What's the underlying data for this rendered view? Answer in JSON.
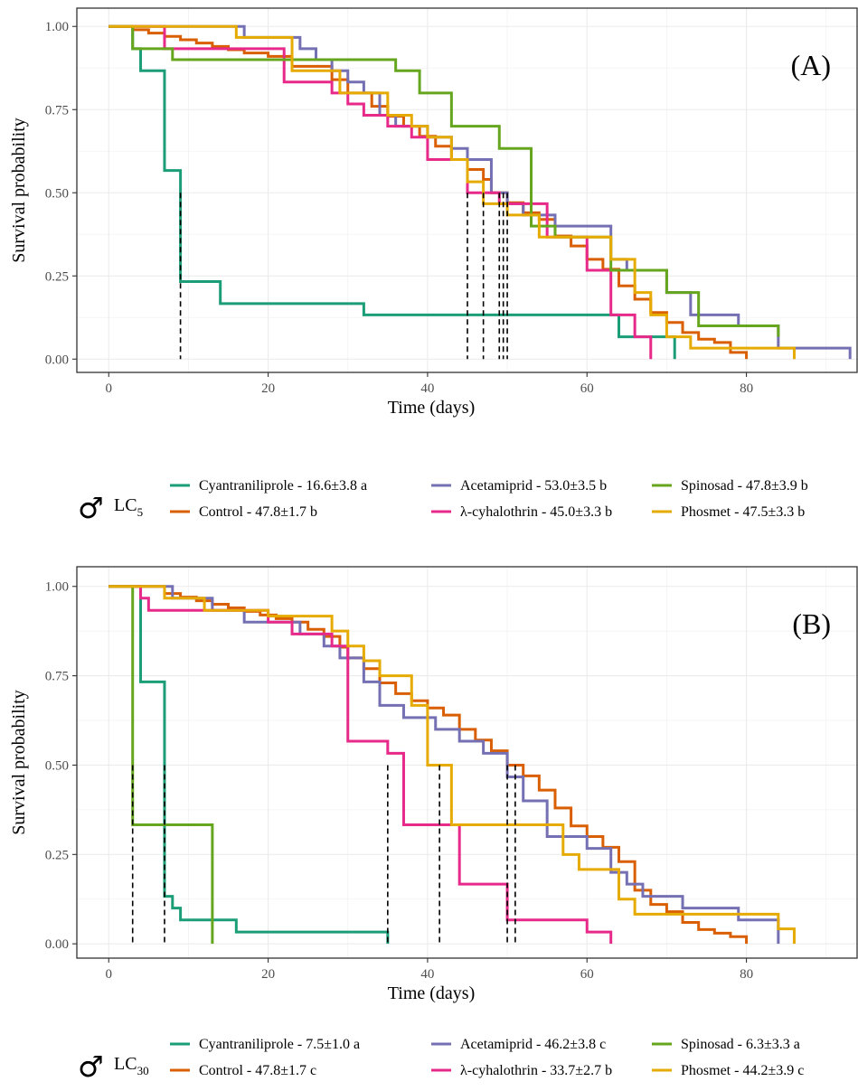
{
  "chart_data": [
    {
      "type": "line",
      "step": true,
      "panel_label": "(A)",
      "xlabel": "Time (days)",
      "ylabel": "Survival probability",
      "xlim": [
        -4,
        94
      ],
      "ylim": [
        -0.04,
        1.055
      ],
      "xticks": [
        0,
        20,
        40,
        60,
        80
      ],
      "xtick_labels": [
        "0",
        "20",
        "40",
        "60",
        "80"
      ],
      "yticks": [
        0,
        0.25,
        0.5,
        0.75,
        1
      ],
      "ytick_labels": [
        "0.00",
        "0.25",
        "0.50",
        "0.75",
        "1.00"
      ],
      "grid": true,
      "legend_position": "bottom",
      "legend_title": {
        "symbol": "♂",
        "main": "LC",
        "sub": "5"
      },
      "medians": [
        {
          "x": 9,
          "y": 0.5
        },
        {
          "x": 45,
          "y": 0.5
        },
        {
          "x": 47,
          "y": 0.5
        },
        {
          "x": 49,
          "y": 0.5
        },
        {
          "x": 49.5,
          "y": 0.5
        },
        {
          "x": 50,
          "y": 0.5
        }
      ],
      "series": [
        {
          "name": "Cyantraniliprole - 16.6±3.8 a",
          "color": "#1b9e77",
          "x": [
            0,
            3,
            4,
            7,
            9,
            14,
            32,
            64,
            70,
            71
          ],
          "y": [
            1,
            0.933,
            0.867,
            0.567,
            0.233,
            0.167,
            0.133,
            0.067,
            0.067,
            0
          ]
        },
        {
          "name": "Control - 47.8±1.7 b",
          "color": "#d95f02",
          "x": [
            0,
            3,
            5,
            7,
            9,
            11,
            13,
            15,
            17,
            20,
            23,
            28,
            30,
            33,
            35,
            37,
            39,
            41,
            43,
            45,
            47,
            48,
            50,
            52,
            54,
            56,
            58,
            60,
            62,
            64,
            66,
            68,
            70,
            72,
            74,
            76,
            78,
            80
          ],
          "y": [
            1,
            0.99,
            0.98,
            0.97,
            0.96,
            0.95,
            0.94,
            0.93,
            0.92,
            0.91,
            0.88,
            0.84,
            0.8,
            0.76,
            0.73,
            0.7,
            0.67,
            0.64,
            0.6,
            0.57,
            0.54,
            0.5,
            0.47,
            0.44,
            0.42,
            0.37,
            0.34,
            0.3,
            0.27,
            0.22,
            0.18,
            0.14,
            0.11,
            0.08,
            0.06,
            0.05,
            0.02,
            0
          ]
        },
        {
          "name": "Acetamiprid - 53.0±3.5 b",
          "color": "#7570b3",
          "x": [
            0,
            17,
            24,
            26,
            28,
            30,
            32,
            34,
            36,
            40,
            43,
            45,
            48,
            50,
            52,
            56,
            63,
            65,
            70,
            73,
            79,
            84,
            93
          ],
          "y": [
            1,
            0.967,
            0.933,
            0.9,
            0.867,
            0.833,
            0.8,
            0.733,
            0.7,
            0.667,
            0.633,
            0.6,
            0.5,
            0.467,
            0.433,
            0.4,
            0.3,
            0.267,
            0.2,
            0.133,
            0.1,
            0.033,
            0
          ]
        },
        {
          "name": "λ-cyhalothrin - 45.0±3.3 b",
          "color": "#e7298a",
          "x": [
            0,
            7,
            22,
            28,
            30,
            32,
            35,
            38,
            40,
            45,
            49,
            55,
            60,
            63,
            66,
            68
          ],
          "y": [
            1,
            0.933,
            0.833,
            0.8,
            0.767,
            0.733,
            0.7,
            0.667,
            0.6,
            0.5,
            0.467,
            0.367,
            0.267,
            0.133,
            0.067,
            0
          ]
        },
        {
          "name": "Spinosad - 47.8±3.9 b",
          "color": "#66a61e",
          "x": [
            0,
            3,
            8,
            36,
            39,
            43,
            49,
            53,
            56,
            63,
            70,
            74,
            84
          ],
          "y": [
            1,
            0.933,
            0.9,
            0.867,
            0.8,
            0.7,
            0.633,
            0.4,
            0.367,
            0.267,
            0.2,
            0.1,
            0.067
          ]
        },
        {
          "name": "Phosmet - 47.5±3.3 b",
          "color": "#e6ab02",
          "x": [
            0,
            16,
            23,
            29,
            35,
            38,
            40,
            43,
            45,
            47,
            50,
            54,
            63,
            66,
            68,
            70,
            73,
            86
          ],
          "y": [
            1,
            0.967,
            0.867,
            0.8,
            0.733,
            0.7,
            0.667,
            0.6,
            0.533,
            0.467,
            0.433,
            0.367,
            0.3,
            0.2,
            0.133,
            0.067,
            0.033,
            0
          ]
        }
      ]
    },
    {
      "type": "line",
      "step": true,
      "panel_label": "(B)",
      "xlabel": "Time (days)",
      "ylabel": "Survival probability",
      "xlim": [
        -4,
        94
      ],
      "ylim": [
        -0.04,
        1.055
      ],
      "xticks": [
        0,
        20,
        40,
        60,
        80
      ],
      "xtick_labels": [
        "0",
        "20",
        "40",
        "60",
        "80"
      ],
      "yticks": [
        0,
        0.25,
        0.5,
        0.75,
        1
      ],
      "ytick_labels": [
        "0.00",
        "0.25",
        "0.50",
        "0.75",
        "1.00"
      ],
      "grid": true,
      "legend_position": "bottom",
      "legend_title": {
        "symbol": "♂",
        "main": "LC",
        "sub": "30"
      },
      "medians": [
        {
          "x": 3,
          "y": 0.5
        },
        {
          "x": 7,
          "y": 0.5
        },
        {
          "x": 35,
          "y": 0.5
        },
        {
          "x": 41.5,
          "y": 0.5
        },
        {
          "x": 50,
          "y": 0.5
        },
        {
          "x": 51,
          "y": 0.5
        }
      ],
      "series": [
        {
          "name": "Cyantraniliprole - 7.5±1.0 a",
          "color": "#1b9e77",
          "x": [
            0,
            4,
            7,
            8,
            9,
            16,
            35
          ],
          "y": [
            1,
            0.733,
            0.133,
            0.1,
            0.067,
            0.033,
            0
          ]
        },
        {
          "name": "Control - 47.8±1.7 c",
          "color": "#d95f02",
          "x": [
            0,
            7,
            9,
            11,
            13,
            15,
            17,
            19,
            21,
            23,
            25,
            27,
            29,
            30,
            32,
            34,
            36,
            38,
            40,
            42,
            44,
            46,
            48,
            50,
            52,
            54,
            56,
            58,
            60,
            62,
            64,
            66,
            68,
            70,
            72,
            74,
            76,
            78,
            80
          ],
          "y": [
            1,
            0.98,
            0.97,
            0.96,
            0.95,
            0.94,
            0.93,
            0.92,
            0.91,
            0.9,
            0.88,
            0.86,
            0.83,
            0.8,
            0.77,
            0.73,
            0.7,
            0.68,
            0.66,
            0.64,
            0.6,
            0.57,
            0.54,
            0.5,
            0.47,
            0.43,
            0.38,
            0.33,
            0.3,
            0.27,
            0.23,
            0.15,
            0.11,
            0.09,
            0.06,
            0.04,
            0.03,
            0.02,
            0
          ]
        },
        {
          "name": "Acetamiprid - 46.2±3.8 c",
          "color": "#7570b3",
          "x": [
            0,
            8,
            13,
            17,
            24,
            27,
            29,
            32,
            34,
            37,
            41,
            44,
            47,
            50,
            52,
            55,
            60,
            63,
            65,
            67,
            72,
            79,
            84
          ],
          "y": [
            1,
            0.967,
            0.933,
            0.9,
            0.867,
            0.833,
            0.8,
            0.733,
            0.667,
            0.633,
            0.6,
            0.567,
            0.533,
            0.467,
            0.4,
            0.3,
            0.267,
            0.2,
            0.167,
            0.133,
            0.1,
            0.067,
            0
          ]
        },
        {
          "name": "λ-cyhalothrin - 33.7±2.7 b",
          "color": "#e7298a",
          "x": [
            0,
            4,
            5,
            20,
            23,
            28,
            30,
            35,
            37,
            44,
            50,
            60,
            63
          ],
          "y": [
            1,
            0.967,
            0.933,
            0.9,
            0.867,
            0.833,
            0.567,
            0.533,
            0.333,
            0.167,
            0.067,
            0.033,
            0
          ]
        },
        {
          "name": "Spinosad - 6.3±3.3 a",
          "color": "#66a61e",
          "x": [
            0,
            3,
            13
          ],
          "y": [
            1,
            0.333,
            0
          ]
        },
        {
          "name": "Phosmet - 44.2±3.9 c",
          "color": "#e6ab02",
          "x": [
            0,
            7,
            12,
            20,
            28,
            30,
            32,
            34,
            38,
            40,
            43,
            57,
            59,
            64,
            66,
            84,
            86
          ],
          "y": [
            1,
            0.967,
            0.933,
            0.917,
            0.875,
            0.833,
            0.792,
            0.75,
            0.667,
            0.5,
            0.333,
            0.25,
            0.208,
            0.125,
            0.083,
            0.042,
            0
          ]
        }
      ]
    }
  ]
}
